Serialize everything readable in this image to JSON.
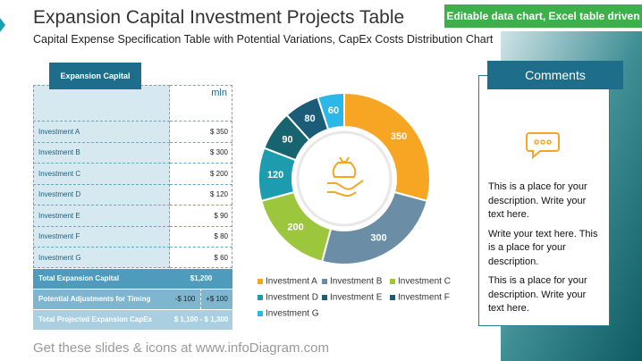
{
  "header": {
    "title": "Expansion Capital Investment Projects Table",
    "subtitle": "Capital Expense Specification Table with Potential Variations, CapEx Costs Distribution Chart",
    "badge": "Editable data chart, Excel table driven"
  },
  "table": {
    "title": "Expansion Capital",
    "unit": "mln",
    "rows": [
      [
        "Investment A",
        "$ 350"
      ],
      [
        "Investment B",
        "$ 300"
      ],
      [
        "Investment C",
        "$ 200"
      ],
      [
        "Investment D",
        "$ 120"
      ],
      [
        "Investment E",
        "$ 90"
      ],
      [
        "Investment F",
        "$ 80"
      ],
      [
        "Investment G",
        "$ 60"
      ]
    ],
    "totals": [
      [
        "Total Expansion Capital",
        "$1,200"
      ],
      [
        "Potential Adjustments for Timing",
        "-$ 100",
        "+$ 100"
      ],
      [
        "Total Projected Expansion CapEx",
        "$ 1,100 - $ 1,300"
      ]
    ]
  },
  "chart_data": {
    "type": "donut",
    "categories": [
      "Investment A",
      "Investment B",
      "Investment C",
      "Investment D",
      "Investment E",
      "Investment F",
      "Investment G"
    ],
    "values": [
      350,
      300,
      200,
      120,
      90,
      80,
      60
    ],
    "colors": [
      "#f6a623",
      "#6b8ea6",
      "#9cc63c",
      "#1d9cb0",
      "#17636f",
      "#1b5c78",
      "#2bb7e8"
    ]
  },
  "comments": {
    "title": "Comments",
    "paragraphs": [
      "This is a place for your description. Write your text here.",
      "Write your text here. This is a place for your description.",
      "This is a place for your description. Write your text here."
    ]
  },
  "footer": "Get these slides & icons at www.infoDiagram.com"
}
